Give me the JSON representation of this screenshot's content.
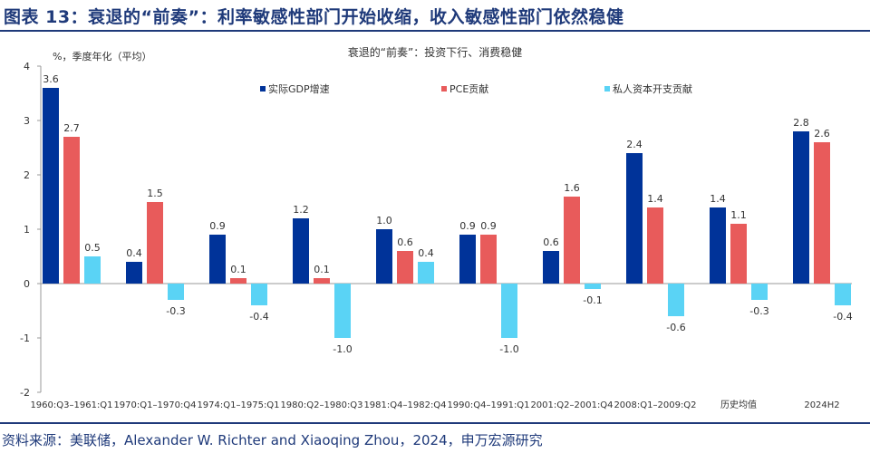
{
  "header": {
    "title": "图表 13：衰退的“前奏”：利率敏感性部门开始收缩，收入敏感性部门依然稳健"
  },
  "footer": {
    "source": "资料来源：美联储，Alexander W. Richter and Xiaoqing Zhou，2024，申万宏源研究"
  },
  "chart_data": {
    "type": "bar",
    "title": "衰退的“前奏”：投资下行、消费稳健",
    "ylabel": "%，季度年化（平均）",
    "ylim": [
      -2,
      4
    ],
    "yticks": [
      "-2",
      "-1",
      "0",
      "1",
      "2",
      "3",
      "4"
    ],
    "legend": "top",
    "grid": false,
    "categories": [
      "1960:Q3–1961:Q1",
      "1970:Q1–1970:Q4",
      "1974:Q1–1975:Q1",
      "1980:Q2–1980:Q3",
      "1981:Q4–1982:Q4",
      "1990:Q4–1991:Q1",
      "2001:Q2–2001:Q4",
      "2008:Q1–2009:Q2",
      "历史均值",
      "2024H2"
    ],
    "series": [
      {
        "name": "实际GDP增速",
        "color": "#003399",
        "values": [
          3.6,
          0.4,
          0.9,
          1.2,
          1.0,
          0.9,
          0.6,
          2.4,
          1.4,
          2.8
        ],
        "labels": [
          "3.6",
          "0.4",
          "0.9",
          "1.2",
          "1.0",
          "0.9",
          "0.6",
          "2.4",
          "1.4",
          "2.8"
        ]
      },
      {
        "name": "PCE贡献",
        "color": "#e85b5b",
        "values": [
          2.7,
          1.5,
          0.1,
          0.1,
          0.6,
          0.9,
          1.6,
          1.4,
          1.1,
          2.6
        ],
        "labels": [
          "2.7",
          "1.5",
          "0.1",
          "0.1",
          "0.6",
          "0.9",
          "1.6",
          "1.4",
          "1.1",
          "2.6"
        ]
      },
      {
        "name": "私人资本开支贡献",
        "color": "#5ad3f5",
        "values": [
          0.5,
          -0.3,
          -0.4,
          -1.0,
          0.4,
          -1.0,
          -0.1,
          -0.6,
          -0.3,
          -0.4
        ],
        "labels": [
          "0.5",
          "-0.3",
          "-0.4",
          "-1.0",
          "0.4",
          "-1.0",
          "-0.1",
          "-0.6",
          "-0.3",
          "-0.4"
        ]
      }
    ]
  }
}
